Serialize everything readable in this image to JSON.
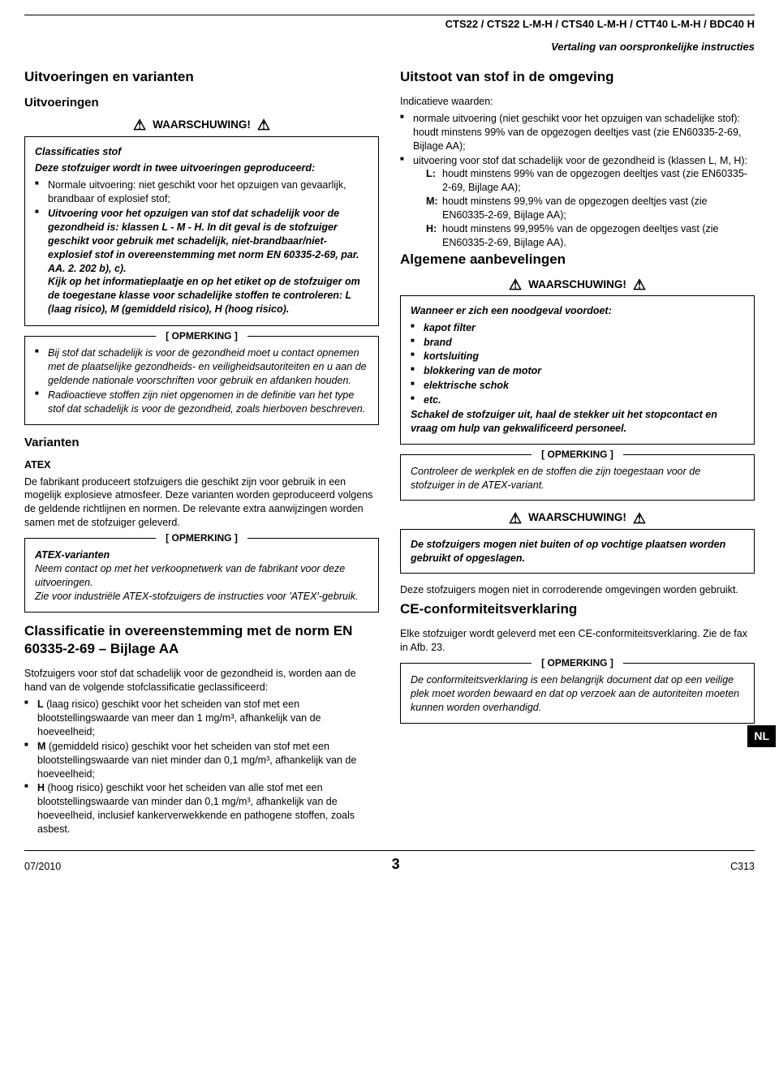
{
  "header": {
    "models": "CTS22 / CTS22 L-M-H / CTS40 L-M-H / CTT40 L-M-H / BDC40 H",
    "subheader": "Vertaling van oorspronkelijke instructies"
  },
  "warning_label": "WAARSCHUWING!",
  "note_label": "[ OPMERKING ]",
  "left": {
    "h_versions": "Uitvoeringen en varianten",
    "h_uitvoeringen": "Uitvoeringen",
    "box1_title": "Classificaties stof",
    "box1_intro": "Deze stofzuiger wordt in twee uitvoeringen geproduceerd:",
    "box1_li1": "Normale uitvoering: niet geschikt voor het opzuigen van gevaarlijk, brandbaar of explosief stof;",
    "box1_li2": "Uitvoering voor het opzuigen van stof dat schadelijk voor de gezondheid is: klassen L - M - H. In dit geval is de stofzuiger geschikt voor gebruik met schadelijk, niet-brandbaar/niet-explosief stof in overeenstemming met norm EN 60335-2-69, par. AA. 2. 202 b), c).",
    "box1_tail": "Kijk op het informatieplaatje en op het etiket op de stofzuiger om de toegestane klasse voor schadelijke stoffen te controleren: L (laag risico), M (gemiddeld risico), H (hoog risico).",
    "note1_li1": "Bij stof dat schadelijk is voor de gezondheid moet u contact opnemen met de plaatselijke gezondheids- en veiligheidsautoriteiten en u aan de geldende nationale voorschriften voor gebruik en afdanken houden.",
    "note1_li2": "Radioactieve stoffen zijn niet opgenomen in de definitie van het type stof dat schadelijk is voor de gezondheid, zoals hierboven beschreven.",
    "h_varianten": "Varianten",
    "h_atex": "ATEX",
    "atex_p": "De fabrikant produceert stofzuigers die geschikt zijn voor gebruik in een mogelijk explosieve atmosfeer. Deze varianten worden geproduceerd volgens de geldende richtlijnen en normen. De relevante extra aanwijzingen worden samen met de stofzuiger geleverd.",
    "note2_title": "ATEX-varianten",
    "note2_p1": "Neem contact op met het verkoopnetwerk van de fabrikant voor deze uitvoeringen.",
    "note2_p2": "Zie voor industriële ATEX-stofzuigers de instructies voor 'ATEX'-gebruik.",
    "h_class": "Classificatie in overeenstemming met de norm EN 60335-2-69 – Bijlage AA",
    "class_p": "Stofzuigers voor stof dat schadelijk voor de gezondheid is, worden aan de hand van de volgende stofclassificatie geclassificeerd:",
    "class_li1_b": "L",
    "class_li1": " (laag risico) geschikt voor het scheiden van stof met een blootstellingswaarde van meer dan 1 mg/m³, afhankelijk van de hoeveelheid;",
    "class_li2_b": "M",
    "class_li2": " (gemiddeld risico) geschikt voor het scheiden van stof met een blootstellingswaarde van niet minder dan 0,1 mg/m³, afhankelijk van de hoeveelheid;",
    "class_li3_b": "H",
    "class_li3": " (hoog risico) geschikt voor het scheiden van alle stof met een blootstellingswaarde van minder dan 0,1 mg/m³, afhankelijk van de hoeveelheid, inclusief kankerverwekkende en pathogene stoffen, zoals asbest."
  },
  "right": {
    "h_uitstoot": "Uitstoot van stof in de omgeving",
    "ind_label": "Indicatieve waarden:",
    "ind_li1": "normale uitvoering (niet geschikt voor het opzuigen van schadelijke stof): houdt minstens 99% van de opgezogen deeltjes vast (zie EN60335-2-69, Bijlage AA);",
    "ind_li2": "uitvoering voor stof dat schadelijk voor de gezondheid is (klassen L, M, H):",
    "ind_L": "houdt minstens 99% van de opgezogen deeltjes vast (zie EN60335-2-69, Bijlage AA);",
    "ind_M": "houdt minstens 99,9% van de opgezogen deeltjes vast (zie EN60335-2-69, Bijlage AA);",
    "ind_H": "houdt minstens 99,995% van de opgezogen deeltjes vast (zie EN60335-2-69, Bijlage AA).",
    "h_alg": "Algemene aanbevelingen",
    "warn2_intro": "Wanneer er zich een noodgeval voordoet:",
    "warn2_li1": "kapot filter",
    "warn2_li2": "brand",
    "warn2_li3": "kortsluiting",
    "warn2_li4": "blokkering van de motor",
    "warn2_li5": "elektrische schok",
    "warn2_li6": "etc.",
    "warn2_out": "Schakel de stofzuiger uit, haal de stekker uit het stopcontact en vraag om hulp van gekwalificeerd personeel.",
    "note3": "Controleer de werkplek en de stoffen die zijn toegestaan voor de stofzuiger in de ATEX-variant.",
    "warn3": "De stofzuigers mogen niet buiten of op vochtige plaatsen worden gebruikt of opgeslagen.",
    "corroding": "Deze stofzuigers mogen niet in corroderende omgevingen worden gebruikt.",
    "h_ce": "CE-conformiteitsverklaring",
    "ce_p": "Elke stofzuiger wordt geleverd met een CE-conformiteitsverklaring. Zie de fax in Afb. 23.",
    "note4": "De conformiteitsverklaring is een belangrijk document dat op een veilige plek moet worden bewaard en dat op verzoek aan de autoriteiten moeten kunnen worden overhandigd."
  },
  "sidetab": "NL",
  "footer": {
    "date": "07/2010",
    "page": "3",
    "code": "C313"
  }
}
